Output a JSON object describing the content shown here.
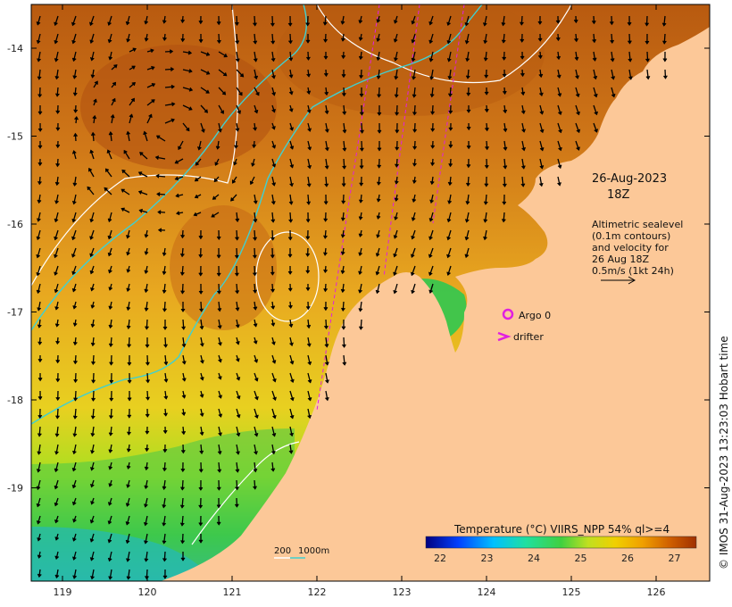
{
  "date_line": "26-Aug-2023",
  "time_line": "18Z",
  "legend_text": {
    "line1": "Altimetric sealevel",
    "line2": "(0.1m contours)",
    "line3": "and velocity for",
    "line4": "26 Aug 18Z",
    "line5": "0.5m/s (1kt 24h)"
  },
  "markers": {
    "argo_label": "Argo 0",
    "drifter_label": "drifter",
    "argo_color": "#e020e0",
    "drifter_color": "#e020e0"
  },
  "depth_legend": {
    "label_200": "200",
    "label_1000": "1000m",
    "contour_200_color": "#ffffff",
    "contour_1000_color": "#40d0d0"
  },
  "colorbar": {
    "title": "Temperature (°C) VIIRS_NPP 54% ql>=4",
    "ticks": [
      "22",
      "23",
      "24",
      "25",
      "26",
      "27"
    ],
    "colors": [
      "#000080",
      "#0040ff",
      "#00c0ff",
      "#20e0a0",
      "#40d040",
      "#c0e020",
      "#f0d000",
      "#f0a000",
      "#d06000",
      "#a03000"
    ]
  },
  "axes": {
    "lon_ticks": [
      "119",
      "120",
      "121",
      "122",
      "123",
      "124",
      "125",
      "126"
    ],
    "lat_ticks": [
      "-14",
      "-15",
      "-16",
      "-17",
      "-18",
      "-19"
    ]
  },
  "credit": "© IMOS 31-Aug-2023 13:23:03 Hobart time",
  "colors": {
    "land": "#fcc898",
    "sea_warm": "#c86a14",
    "sea_mid": "#e8a020",
    "sea_cool": "#b8dc20",
    "sea_cold": "#30c850"
  }
}
